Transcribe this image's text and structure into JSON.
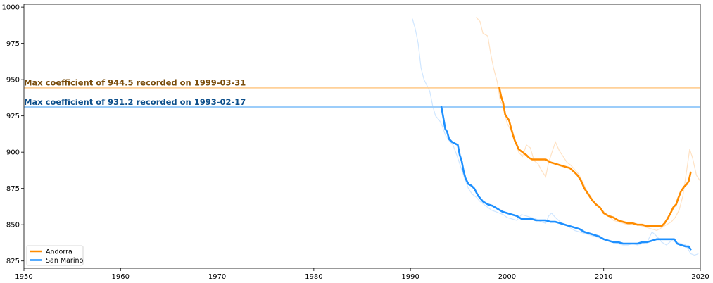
{
  "chart_data": {
    "type": "line",
    "title": "",
    "xlabel": "",
    "ylabel": "",
    "xlim": [
      1950,
      2020
    ],
    "ylim": [
      820,
      1002
    ],
    "x_ticks": [
      1950,
      1960,
      1970,
      1980,
      1990,
      2000,
      2010,
      2020
    ],
    "y_ticks": [
      825,
      850,
      875,
      900,
      925,
      950,
      975,
      1000
    ],
    "grid": false,
    "legend_placement": "lower-left",
    "colors": {
      "Andorra": "#ff8c00",
      "San Marino": "#1e90ff",
      "Andorra_raw": "#ffe2c4",
      "San Marino_raw": "#cfe6ff",
      "Andorra_max_line": "#ffd199",
      "San Marino_max_line": "#9ccdfa",
      "Andorra_annotation": "#7a4d0c",
      "San Marino_annotation": "#0d4f8b"
    },
    "series": [
      {
        "name": "Andorra",
        "x": [
          1999.2,
          1999.4,
          1999.6,
          1999.8,
          2000.0,
          2000.2,
          2000.4,
          2000.6,
          2000.8,
          2001.0,
          2001.2,
          2001.4,
          2001.6,
          2001.8,
          2002.0,
          2002.3,
          2002.6,
          2003.0,
          2003.5,
          2004.0,
          2004.5,
          2005.0,
          2005.5,
          2006.0,
          2006.5,
          2007.0,
          2007.3,
          2007.6,
          2008.0,
          2008.4,
          2008.8,
          2009.2,
          2009.6,
          2010.0,
          2010.5,
          2011.0,
          2011.5,
          2012.0,
          2012.5,
          2013.0,
          2013.5,
          2014.0,
          2014.5,
          2015.0,
          2015.5,
          2016.0,
          2016.3,
          2016.6,
          2017.0,
          2017.2,
          2017.5,
          2017.7,
          2018.0,
          2018.3,
          2018.6,
          2018.8,
          2019.0
        ],
        "values": [
          944.5,
          938,
          934,
          926,
          924,
          922,
          917,
          912,
          908,
          905,
          902,
          901,
          900,
          899,
          898,
          896,
          895,
          895,
          895,
          895,
          893,
          892,
          891,
          890,
          889,
          886,
          884,
          881,
          875,
          871,
          867,
          864,
          862,
          858,
          856,
          855,
          853,
          852,
          851,
          851,
          850,
          850,
          849,
          849,
          849,
          849,
          851,
          854,
          859,
          862,
          864,
          868,
          873,
          876,
          878,
          880,
          886
        ]
      },
      {
        "name": "San Marino",
        "x": [
          1993.2,
          1993.4,
          1993.6,
          1993.8,
          1994.0,
          1994.3,
          1994.6,
          1994.9,
          1995.1,
          1995.3,
          1995.5,
          1995.7,
          1996.0,
          1996.3,
          1996.6,
          1997.0,
          1997.5,
          1998.0,
          1998.5,
          1999.0,
          1999.5,
          2000.0,
          2000.5,
          2001.0,
          2001.5,
          2002.0,
          2002.5,
          2003.0,
          2003.5,
          2004.0,
          2004.5,
          2005.0,
          2005.5,
          2006.0,
          2006.5,
          2007.0,
          2007.5,
          2008.0,
          2008.5,
          2009.0,
          2009.5,
          2010.0,
          2010.5,
          2011.0,
          2011.5,
          2012.0,
          2012.5,
          2013.0,
          2013.5,
          2014.0,
          2014.5,
          2015.0,
          2015.5,
          2016.0,
          2016.5,
          2017.0,
          2017.3,
          2017.6,
          2018.0,
          2018.5,
          2018.8,
          2019.0
        ],
        "values": [
          931.2,
          924,
          916,
          914,
          909,
          907,
          906,
          905,
          898,
          894,
          887,
          882,
          878,
          877,
          875,
          870,
          866,
          864,
          863,
          861,
          859,
          858,
          857,
          856,
          854,
          854,
          854,
          853,
          853,
          853,
          852,
          852,
          851,
          850,
          849,
          848,
          847,
          845,
          844,
          843,
          842,
          840,
          839,
          838,
          838,
          837,
          837,
          837,
          837,
          838,
          838,
          839,
          840,
          840,
          840,
          840,
          840,
          837,
          836,
          835,
          835,
          833
        ]
      }
    ],
    "raw_series": [
      {
        "of": "Andorra",
        "x": [
          1996.8,
          1997.2,
          1997.5,
          1998.0,
          1998.3,
          1998.6,
          1999.0,
          1999.3,
          1999.6,
          2000.0,
          2000.4,
          2000.8,
          2001.2,
          2001.6,
          2002.0,
          2002.4,
          2002.8,
          2003.2,
          2003.6,
          2004.0,
          2004.3,
          2004.6,
          2005.0,
          2005.4,
          2005.8,
          2006.2,
          2006.6,
          2007.0,
          2007.4,
          2007.8,
          2008.2,
          2008.6,
          2009.0,
          2009.5,
          2010.0,
          2010.5,
          2011.0,
          2011.5,
          2012.0,
          2012.5,
          2013.0,
          2013.5,
          2014.0,
          2014.5,
          2015.0,
          2015.5,
          2016.0,
          2016.5,
          2017.0,
          2017.4,
          2017.8,
          2018.2,
          2018.6,
          2018.9,
          2019.2,
          2019.6,
          2020.0
        ],
        "values": [
          993,
          990,
          982,
          980,
          968,
          958,
          948,
          935,
          932,
          920,
          915,
          908,
          900,
          897,
          905,
          903,
          894,
          892,
          887,
          883,
          893,
          899,
          907,
          901,
          897,
          893,
          891,
          888,
          885,
          880,
          874,
          870,
          866,
          862,
          859,
          856,
          853,
          852,
          851,
          850,
          851,
          850,
          849,
          848,
          847,
          846,
          848,
          850,
          852,
          855,
          860,
          870,
          888,
          902,
          896,
          884,
          880
        ]
      },
      {
        "of": "San Marino",
        "x": [
          1990.2,
          1990.5,
          1990.8,
          1991.1,
          1991.4,
          1991.7,
          1992.0,
          1992.3,
          1992.6,
          1993.0,
          1993.3,
          1993.6,
          1994.0,
          1994.4,
          1994.8,
          1995.2,
          1995.6,
          1996.0,
          1996.4,
          1996.8,
          1997.2,
          1997.6,
          1998.0,
          1998.4,
          1998.8,
          1999.2,
          1999.6,
          2000.0,
          2000.5,
          2001.0,
          2001.5,
          2002.0,
          2002.5,
          2003.0,
          2003.5,
          2004.0,
          2004.3,
          2004.6,
          2005.0,
          2005.5,
          2006.0,
          2006.5,
          2007.0,
          2007.5,
          2008.0,
          2008.5,
          2009.0,
          2009.5,
          2010.0,
          2010.5,
          2011.0,
          2011.5,
          2012.0,
          2012.5,
          2013.0,
          2013.5,
          2014.0,
          2014.5,
          2015.0,
          2015.5,
          2016.0,
          2016.5,
          2017.0,
          2017.5,
          2018.0,
          2018.5,
          2019.0,
          2019.4,
          2019.8
        ],
        "values": [
          992,
          985,
          975,
          958,
          950,
          946,
          942,
          932,
          925,
          922,
          918,
          912,
          908,
          905,
          898,
          890,
          882,
          875,
          871,
          869,
          866,
          864,
          862,
          860,
          859,
          858,
          857,
          855,
          854,
          853,
          857,
          856,
          855,
          854,
          852,
          851,
          856,
          858,
          855,
          852,
          850,
          848,
          846,
          845,
          844,
          843,
          842,
          841,
          840,
          839,
          838,
          837,
          836,
          836,
          837,
          836,
          837,
          838,
          845,
          842,
          838,
          836,
          839,
          838,
          837,
          836,
          830,
          829,
          830
        ]
      }
    ],
    "max_lines": [
      {
        "of": "Andorra",
        "y": 944.5
      },
      {
        "of": "San Marino",
        "y": 931.2
      }
    ],
    "annotations": [
      {
        "of": "Andorra",
        "text": "Max coefficient of 944.5 recorded on 1999-03-31"
      },
      {
        "of": "San Marino",
        "text": "Max coefficient of 931.2 recorded on 1993-02-17"
      }
    ],
    "legend": [
      "Andorra",
      "San Marino"
    ]
  }
}
